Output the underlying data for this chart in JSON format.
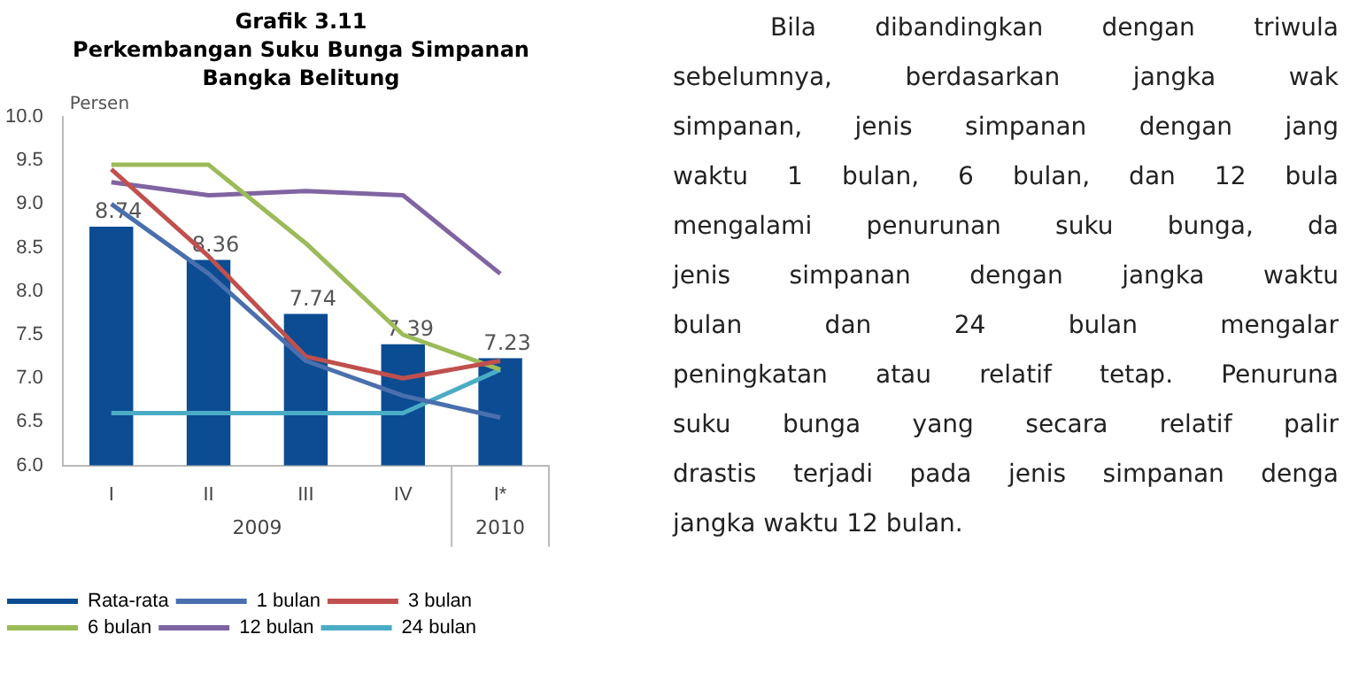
{
  "chart_data": {
    "type": "bar",
    "title": "Grafik 3.11",
    "subtitle": "Perkembangan Suku Bunga Simpanan Bangka Belitung",
    "ylabel": "Persen",
    "categories": [
      "I",
      "II",
      "III",
      "IV",
      "I*"
    ],
    "series": [
      {
        "name": "Rata-rata",
        "color": "#0b4c92",
        "values": [
          8.74,
          8.36,
          7.74,
          7.39,
          7.23
        ],
        "value_labels": [
          "8.74",
          "8.36",
          "7.74",
          "7.39",
          "7.23"
        ]
      },
      {
        "name": "1 bulan",
        "type": "line",
        "color": "#4a6fae",
        "values": [
          9.0,
          8.2,
          7.2,
          6.8,
          6.55
        ]
      },
      {
        "name": "3 bulan",
        "type": "line",
        "color": "#c0504d",
        "values": [
          9.4,
          8.4,
          7.25,
          7.0,
          7.2
        ]
      },
      {
        "name": "6 bulan",
        "type": "line",
        "color": "#9bbb59",
        "values": [
          9.45,
          9.45,
          8.55,
          7.5,
          7.1
        ]
      },
      {
        "name": "12 bulan",
        "type": "line",
        "color": "#8064a2",
        "values": [
          9.25,
          9.1,
          9.15,
          9.1,
          8.2
        ]
      },
      {
        "name": "24 bulan",
        "type": "line",
        "color": "#4bacc6",
        "values": [
          6.6,
          6.6,
          6.6,
          6.6,
          7.1
        ]
      }
    ],
    "ylim": [
      6,
      10
    ],
    "yticks": [
      {
        "value": 6,
        "label": "6.0"
      },
      {
        "value": 6.5,
        "label": "6.5"
      },
      {
        "value": 7,
        "label": "7.0"
      },
      {
        "value": 7.5,
        "label": "7.5"
      },
      {
        "value": 8,
        "label": "8.0"
      },
      {
        "value": 8.5,
        "label": "8.5"
      },
      {
        "value": 9,
        "label": "9.0"
      },
      {
        "value": 9.5,
        "label": "9.5"
      },
      {
        "value": 10,
        "label": "10.0"
      }
    ],
    "grid": false,
    "legend": "bottom",
    "marker": "none",
    "annotations": [
      "2009",
      "2010",
      "Bila dibandingkan dengan triwula",
      "sebelumnya, berdasarkan jangka wak",
      "simpanan, jenis simpanan dengan jang",
      "waktu 1 bulan, 6 bulan, dan 12 bula",
      "mengalami penurunan suku bunga, da",
      "jenis simpanan dengan jangka waktu",
      "bulan dan 24 bulan mengalar",
      "peningkatan atau relatif tetap. Penuruna",
      "suku bunga yang secara relatif palir",
      "drastis terjadi pada jenis simpanan denga",
      "jangka waktu 12 bulan."
    ]
  }
}
